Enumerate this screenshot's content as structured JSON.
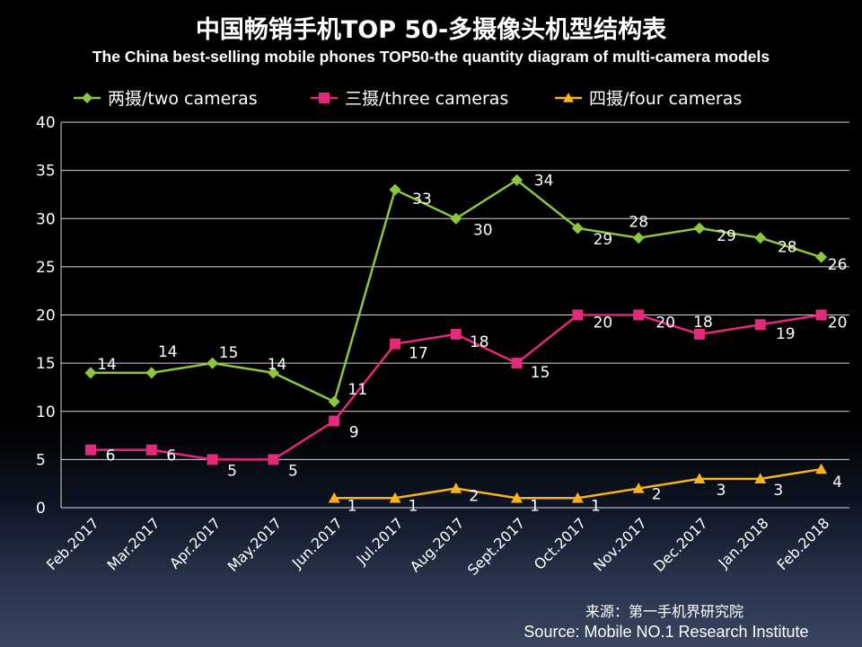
{
  "chart_data": {
    "type": "line",
    "title": "中国畅销手机TOP 50-多摄像头机型结构表",
    "subtitle": "The China best-selling mobile phones TOP50-the quantity diagram of multi-camera models",
    "xlabel": "",
    "ylabel": "",
    "ylim": [
      0,
      40
    ],
    "yticks": [
      "0",
      "5",
      "10",
      "15",
      "20",
      "25",
      "30",
      "35",
      "40"
    ],
    "grid": true,
    "legend_position": "top",
    "categories": [
      "Feb.2017",
      "Mar.2017",
      "Apr.2017",
      "May.2017",
      "Jun.2017",
      "Jul.2017",
      "Aug.2017",
      "Sept.2017",
      "Oct.2017",
      "Nov.2017",
      "Dec.2017",
      "Jan.2018",
      "Feb.2018"
    ],
    "series": [
      {
        "name": "两摄/two cameras",
        "color": "#8dc63f",
        "marker": "diamond",
        "values": [
          14,
          14,
          15,
          14,
          11,
          33,
          30,
          34,
          29,
          28,
          29,
          28,
          26
        ]
      },
      {
        "name": "三摄/three cameras",
        "color": "#e4287a",
        "marker": "square",
        "values": [
          6,
          6,
          5,
          5,
          9,
          17,
          18,
          15,
          20,
          20,
          18,
          19,
          20
        ]
      },
      {
        "name": "四摄/four cameras",
        "color": "#f7b21d",
        "marker": "triangle",
        "values": [
          null,
          null,
          null,
          null,
          1,
          1,
          2,
          1,
          1,
          2,
          3,
          3,
          4
        ]
      }
    ]
  },
  "source": {
    "cn": "来源：第一手机界研究院",
    "en": "Source: Mobile NO.1 Research Institute"
  }
}
